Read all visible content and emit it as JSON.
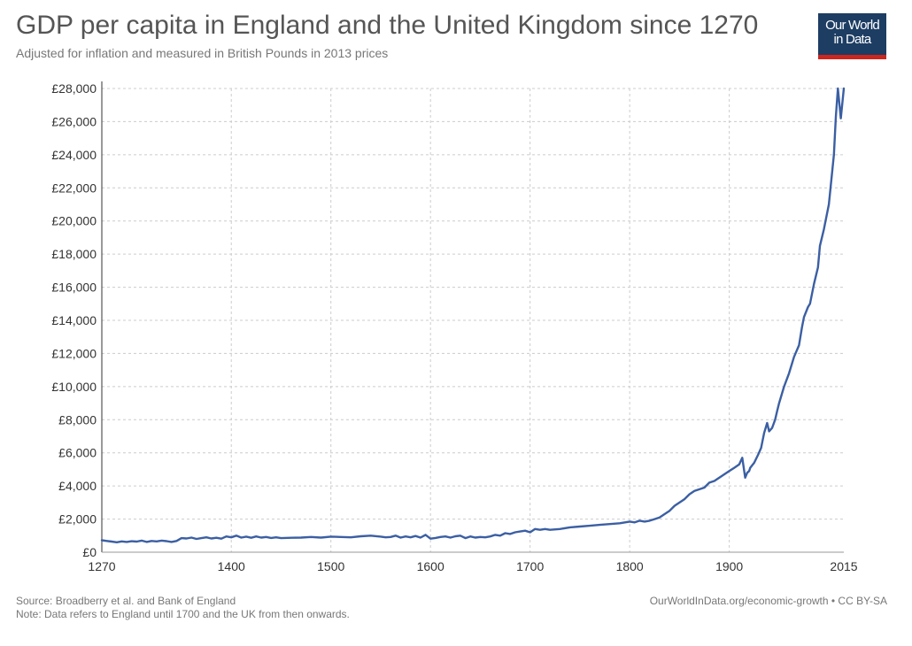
{
  "header": {
    "title": "GDP per capita in England and the United Kingdom since 1270",
    "subtitle": "Adjusted for inflation and measured in British Pounds in 2013 prices"
  },
  "logo": {
    "line1": "Our World",
    "line2": "in Data"
  },
  "footer": {
    "source": "Source: Broadberry et al. and Bank of England",
    "note": "Note: Data refers to England until 1700 and the UK from then onwards.",
    "credit": "OurWorldInData.org/economic-growth • CC BY-SA"
  },
  "colors": {
    "line": "#3b5fa3",
    "grid": "#cccccc",
    "axis": "#333333",
    "logo_bg": "#1d3d63",
    "logo_bar": "#ce261e"
  },
  "chart_data": {
    "type": "line",
    "title": "GDP per capita in England and the United Kingdom since 1270",
    "subtitle": "Adjusted for inflation and measured in British Pounds in 2013 prices",
    "xlim": [
      1270,
      2015
    ],
    "ylim": [
      0,
      28000
    ],
    "x_ticks": [
      1270,
      1400,
      1500,
      1600,
      1700,
      1800,
      1900,
      2015
    ],
    "y_ticks": [
      0,
      2000,
      4000,
      6000,
      8000,
      10000,
      12000,
      14000,
      16000,
      18000,
      20000,
      22000,
      24000,
      26000,
      28000
    ],
    "y_tick_labels": [
      "£0",
      "£2,000",
      "£4,000",
      "£6,000",
      "£8,000",
      "£10,000",
      "£12,000",
      "£14,000",
      "£16,000",
      "£18,000",
      "£20,000",
      "£22,000",
      "£24,000",
      "£26,000",
      "£28,000"
    ],
    "grid": true,
    "legend": "none",
    "series": [
      {
        "x": [
          1270,
          1275,
          1280,
          1285,
          1290,
          1295,
          1300,
          1305,
          1310,
          1315,
          1320,
          1325,
          1330,
          1335,
          1340,
          1345,
          1350,
          1355,
          1360,
          1365,
          1370,
          1375,
          1380,
          1385,
          1390,
          1395,
          1400,
          1405,
          1410,
          1415,
          1420,
          1425,
          1430,
          1435,
          1440,
          1445,
          1450,
          1460,
          1470,
          1480,
          1490,
          1500,
          1510,
          1520,
          1530,
          1540,
          1550,
          1555,
          1560,
          1565,
          1570,
          1575,
          1580,
          1585,
          1590,
          1595,
          1600,
          1605,
          1610,
          1615,
          1620,
          1625,
          1630,
          1635,
          1640,
          1645,
          1650,
          1655,
          1660,
          1665,
          1670,
          1675,
          1680,
          1685,
          1690,
          1695,
          1700,
          1705,
          1710,
          1715,
          1720,
          1730,
          1740,
          1750,
          1760,
          1770,
          1780,
          1790,
          1800,
          1805,
          1810,
          1815,
          1820,
          1825,
          1830,
          1835,
          1840,
          1845,
          1850,
          1855,
          1860,
          1865,
          1870,
          1875,
          1880,
          1885,
          1890,
          1895,
          1900,
          1905,
          1910,
          1913,
          1916,
          1918,
          1920,
          1921,
          1925,
          1929,
          1932,
          1935,
          1938,
          1940,
          1943,
          1946,
          1948,
          1950,
          1955,
          1960,
          1965,
          1970,
          1973,
          1975,
          1979,
          1981,
          1985,
          1989,
          1991,
          1995,
          2000,
          2005,
          2007,
          2009,
          2012,
          2015
        ],
        "y": [
          720,
          680,
          640,
          600,
          650,
          620,
          660,
          640,
          700,
          620,
          680,
          650,
          700,
          670,
          620,
          680,
          850,
          830,
          880,
          800,
          850,
          900,
          830,
          870,
          820,
          950,
          900,
          1000,
          880,
          940,
          870,
          950,
          880,
          920,
          860,
          900,
          850,
          870,
          880,
          920,
          880,
          940,
          920,
          900,
          960,
          1000,
          940,
          900,
          920,
          1000,
          880,
          950,
          900,
          980,
          880,
          1050,
          820,
          860,
          920,
          950,
          880,
          960,
          1000,
          850,
          950,
          880,
          920,
          900,
          950,
          1050,
          1000,
          1150,
          1100,
          1200,
          1250,
          1300,
          1200,
          1400,
          1350,
          1400,
          1350,
          1400,
          1500,
          1550,
          1600,
          1650,
          1700,
          1750,
          1850,
          1800,
          1900,
          1850,
          1900,
          2000,
          2100,
          2300,
          2500,
          2800,
          3000,
          3200,
          3500,
          3700,
          3800,
          3900,
          4200,
          4300,
          4500,
          4700,
          4900,
          5100,
          5300,
          5700,
          4500,
          4800,
          4900,
          5100,
          5400,
          5900,
          6300,
          7200,
          7800,
          7300,
          7500,
          8000,
          8500,
          9000,
          10000,
          10800,
          11800,
          12500,
          13600,
          14200,
          14800,
          15000,
          16200,
          17200,
          18500,
          19500,
          21000,
          24000,
          26300,
          28000,
          26200,
          28000
        ]
      }
    ]
  }
}
